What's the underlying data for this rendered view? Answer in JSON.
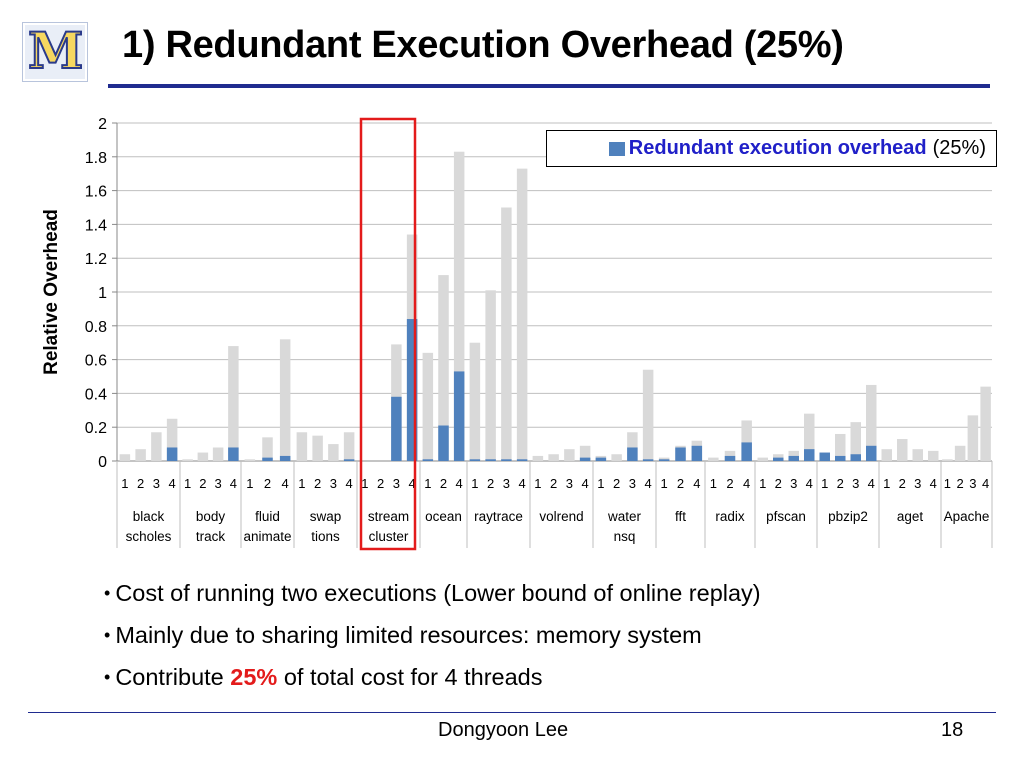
{
  "logo": {
    "text": "M"
  },
  "slide": {
    "title": "1) Redundant Execution Overhead (25%)",
    "bullets": {
      "b1": "Cost of running two executions (Lower bound of online replay)",
      "b2": "Mainly due to sharing limited resources: memory system",
      "b3_pre": "Contribute ",
      "b3_hl": "25%",
      "b3_post": " of total cost for 4 threads"
    },
    "footer": {
      "author": "Dongyoon Lee",
      "page": "18"
    }
  },
  "legend": {
    "label_bold": "Redundant execution overhead",
    "label_rest": "(25%)"
  },
  "colors": {
    "overhead": "#4f81bd",
    "total": "#d9d9d9",
    "highlight": "#e31b1b",
    "rule": "#1f2b8f"
  },
  "chart_data": {
    "type": "bar",
    "stacked": true,
    "ylabel": "Relative Overhead",
    "ylim": [
      0,
      2
    ],
    "yticks": [
      "0",
      "0.2",
      "0.4",
      "0.6",
      "0.8",
      "1",
      "1.2",
      "1.4",
      "1.6",
      "1.8",
      "2"
    ],
    "grid": true,
    "legend_position": "top-right",
    "highlighted_group": "streamcluster",
    "groups": [
      {
        "label": [
          "black",
          "scholes"
        ],
        "threads": [
          "1",
          "2",
          "3",
          "4"
        ],
        "overhead": [
          0,
          0,
          0,
          0.08
        ],
        "total": [
          0.04,
          0.07,
          0.17,
          0.25
        ]
      },
      {
        "label": [
          "body",
          "track"
        ],
        "threads": [
          "1",
          "2",
          "3",
          "4"
        ],
        "overhead": [
          0,
          0,
          0,
          0.08
        ],
        "total": [
          0.01,
          0.05,
          0.08,
          0.68
        ]
      },
      {
        "label": [
          "fluid",
          "animate"
        ],
        "threads": [
          "1",
          "2",
          "4"
        ],
        "overhead": [
          0,
          0.02,
          0.03
        ],
        "total": [
          0.01,
          0.14,
          0.72
        ]
      },
      {
        "label": [
          "swap",
          "tions"
        ],
        "threads": [
          "1",
          "2",
          "3",
          "4"
        ],
        "overhead": [
          0,
          0,
          0,
          0.01
        ],
        "total": [
          0.17,
          0.15,
          0.1,
          0.17
        ]
      },
      {
        "label": [
          "stream",
          "cluster"
        ],
        "threads": [
          "1",
          "2",
          "3",
          "4"
        ],
        "overhead": [
          0,
          0,
          0.38,
          0.84
        ],
        "total": [
          0,
          0,
          0.69,
          1.34
        ]
      },
      {
        "label": [
          "ocean"
        ],
        "threads": [
          "1",
          "2",
          "4"
        ],
        "overhead": [
          0.01,
          0.21,
          0.53
        ],
        "total": [
          0.64,
          1.1,
          1.83
        ]
      },
      {
        "label": [
          "raytrace"
        ],
        "threads": [
          "1",
          "2",
          "3",
          "4"
        ],
        "overhead": [
          0.01,
          0.01,
          0.01,
          0.01
        ],
        "total": [
          0.7,
          1.01,
          1.5,
          1.73
        ]
      },
      {
        "label": [
          "volrend"
        ],
        "threads": [
          "1",
          "2",
          "3",
          "4"
        ],
        "overhead": [
          0,
          0,
          0,
          0.02
        ],
        "total": [
          0.03,
          0.04,
          0.07,
          0.09
        ]
      },
      {
        "label": [
          "water",
          "nsq"
        ],
        "threads": [
          "1",
          "2",
          "3",
          "4"
        ],
        "overhead": [
          0.02,
          0,
          0.08,
          0.01
        ],
        "total": [
          0.03,
          0.04,
          0.17,
          0.54
        ]
      },
      {
        "label": [
          "fft"
        ],
        "threads": [
          "1",
          "2",
          "4"
        ],
        "overhead": [
          0.01,
          0.08,
          0.09
        ],
        "total": [
          0.02,
          0.09,
          0.12
        ]
      },
      {
        "label": [
          "radix"
        ],
        "threads": [
          "1",
          "2",
          "4"
        ],
        "overhead": [
          0,
          0.03,
          0.11
        ],
        "total": [
          0.02,
          0.06,
          0.24
        ]
      },
      {
        "label": [
          "pfscan"
        ],
        "threads": [
          "1",
          "2",
          "3",
          "4"
        ],
        "overhead": [
          0,
          0.02,
          0.03,
          0.07
        ],
        "total": [
          0.02,
          0.04,
          0.06,
          0.28
        ]
      },
      {
        "label": [
          "pbzip2"
        ],
        "threads": [
          "1",
          "2",
          "3",
          "4"
        ],
        "overhead": [
          0.05,
          0.03,
          0.04,
          0.09
        ],
        "total": [
          0.05,
          0.16,
          0.23,
          0.45
        ]
      },
      {
        "label": [
          "aget"
        ],
        "threads": [
          "1",
          "2",
          "3",
          "4"
        ],
        "overhead": [
          0,
          0,
          0,
          0
        ],
        "total": [
          0.07,
          0.13,
          0.07,
          0.06
        ]
      },
      {
        "label": [
          "Apache"
        ],
        "threads": [
          "1",
          "2",
          "3",
          "4"
        ],
        "overhead": [
          0,
          0,
          0,
          0
        ],
        "total": [
          0.01,
          0.09,
          0.27,
          0.44
        ]
      }
    ]
  }
}
